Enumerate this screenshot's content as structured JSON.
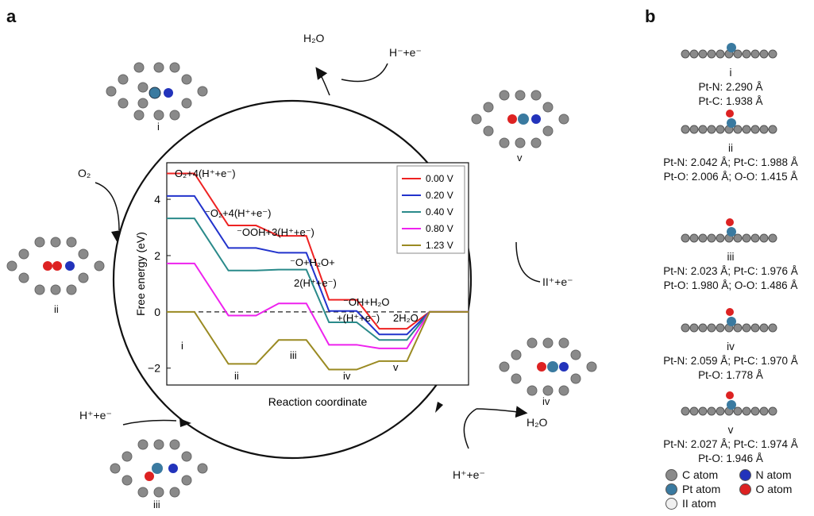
{
  "panels": {
    "a": "a",
    "b": "b"
  },
  "cycle_labels": {
    "h2o_top": "H₂O",
    "h_top": "H⁻+e⁻",
    "o2_left": "O₂",
    "h_right": "II⁺+e⁻",
    "h_bottom_left": "H⁺+e⁻",
    "h2o_bottom": "H₂O",
    "h_bottom": "H⁺+e⁻"
  },
  "intermediates": {
    "i": "i",
    "ii": "ii",
    "iii": "iii",
    "iv": "iv",
    "v": "v"
  },
  "chart_data": {
    "type": "line",
    "xlabel": "Reaction coordinate",
    "ylabel": "Free energy (eV)",
    "ylim": [
      -2.6,
      5.3
    ],
    "yticks": [
      -2,
      0,
      2,
      4
    ],
    "legend_position": "top-right",
    "series": [
      {
        "name": "0.00 V",
        "color": "#ee2222",
        "values": [
          4.92,
          3.07,
          2.7,
          0.43,
          -0.6,
          0
        ]
      },
      {
        "name": "0.20 V",
        "color": "#2233cc",
        "values": [
          4.12,
          2.27,
          2.1,
          0.03,
          -0.8,
          0
        ]
      },
      {
        "name": "0.40 V",
        "color": "#2a8a8a",
        "values": [
          3.32,
          1.47,
          1.5,
          -0.37,
          -1.0,
          0
        ]
      },
      {
        "name": "0.80 V",
        "color": "#ee22ee",
        "values": [
          1.72,
          -0.13,
          0.3,
          -1.17,
          -1.3,
          0
        ]
      },
      {
        "name": "1.23 V",
        "color": "#9a8a22",
        "values": [
          0,
          -1.85,
          -1.0,
          -2.05,
          -1.75,
          0
        ]
      }
    ],
    "step_labels": [
      "O₂+4(H⁺+e⁻)",
      "⁻O₂+4(H⁺+e⁻)",
      "⁻OOH+3(H⁺+e⁻)",
      "⁻O+H₂O+",
      "2(H⁺+e⁻)",
      "⁻OH+H₂O",
      "+(H⁺+e⁻)",
      "2H₂O"
    ],
    "roman_labels": [
      "i",
      "ii",
      "iii",
      "iv",
      "v"
    ]
  },
  "geometries": [
    {
      "label": "i",
      "line1": "Pt-N: 2.290 Å",
      "line2": "Pt-C: 1.938 Å"
    },
    {
      "label": "ii",
      "line1": "Pt-N: 2.042 Å; Pt-C: 1.988 Å",
      "line2": "Pt-O: 2.006 Å; O-O: 1.415 Å"
    },
    {
      "label": "iii",
      "line1": "Pt-N: 2.023 Å; Pt-C: 1.976 Å",
      "line2": "Pt-O: 1.980 Å; O-O: 1.486 Å"
    },
    {
      "label": "iv",
      "line1": "Pt-N: 2.059 Å; Pt-C: 1.970 Å",
      "line2": "Pt-O: 1.778 Å"
    },
    {
      "label": "v",
      "line1": "Pt-N: 2.027 Å; Pt-C: 1.974 Å",
      "line2": "Pt-O: 1.946 Å"
    }
  ],
  "atom_legend": [
    {
      "label": "C atom",
      "color": "#8a8a8a"
    },
    {
      "label": "N atom",
      "color": "#2233bb"
    },
    {
      "label": "Pt atom",
      "color": "#3a7aa0"
    },
    {
      "label": "O atom",
      "color": "#dd2222"
    },
    {
      "label": "II atom",
      "color": "#f0f0f0"
    }
  ]
}
